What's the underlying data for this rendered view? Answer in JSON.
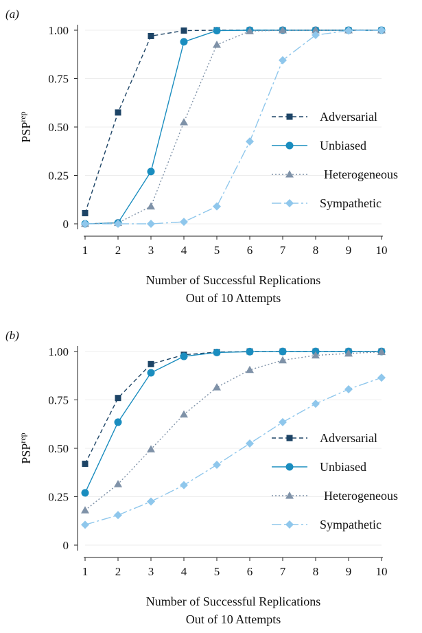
{
  "chart_data": [
    {
      "type": "line",
      "panel_label": "(a)",
      "xlabel": [
        "Number of Successful Replications",
        "Out of 10 Attempts"
      ],
      "ylabel": "PSP",
      "ylabel_sup": "rep",
      "x": [
        1,
        2,
        3,
        4,
        5,
        6,
        7,
        8,
        9,
        10
      ],
      "xlim": [
        1,
        10
      ],
      "ylim": [
        0,
        1
      ],
      "yticks": [
        "0",
        "0.25",
        "0.50",
        "0.75",
        "1.00"
      ],
      "ytick_values": [
        0,
        0.25,
        0.5,
        0.75,
        1.0
      ],
      "grid": true,
      "legend": "right",
      "series": [
        {
          "name": "Adversarial",
          "values": [
            0.055,
            0.575,
            0.97,
            0.998,
            1.0,
            1.0,
            1.0,
            1.0,
            1.0,
            1.0
          ],
          "color": "#1d4466",
          "marker": "square",
          "dash": "6,4"
        },
        {
          "name": "Unbiased",
          "values": [
            0.0,
            0.005,
            0.27,
            0.94,
            0.998,
            1.0,
            1.0,
            1.0,
            1.0,
            1.0
          ],
          "color": "#1a8dbf",
          "marker": "circle",
          "dash": ""
        },
        {
          "name": "Heterogeneous",
          "values": [
            0.0,
            0.005,
            0.09,
            0.525,
            0.925,
            0.995,
            1.0,
            1.0,
            1.0,
            1.0
          ],
          "color": "#7f92a8",
          "marker": "triangle",
          "dash": "2,3"
        },
        {
          "name": "Sympathetic",
          "values": [
            0.0,
            0.0,
            0.0,
            0.01,
            0.09,
            0.425,
            0.845,
            0.975,
            0.998,
            1.0
          ],
          "color": "#8fc7ec",
          "marker": "diamond",
          "dash": "14,4,3,4"
        }
      ]
    },
    {
      "type": "line",
      "panel_label": "(b)",
      "xlabel": [
        "Number of Successful Replications",
        "Out of 10 Attempts"
      ],
      "ylabel": "PSP",
      "ylabel_sup": "rep",
      "x": [
        1,
        2,
        3,
        4,
        5,
        6,
        7,
        8,
        9,
        10
      ],
      "xlim": [
        1,
        10
      ],
      "ylim": [
        0,
        1
      ],
      "yticks": [
        "0",
        "0.25",
        "0.50",
        "0.75",
        "1.00"
      ],
      "ytick_values": [
        0,
        0.25,
        0.5,
        0.75,
        1.0
      ],
      "grid": true,
      "legend": "right",
      "series": [
        {
          "name": "Adversarial",
          "values": [
            0.42,
            0.76,
            0.935,
            0.983,
            0.997,
            1.0,
            1.0,
            1.0,
            1.0,
            1.0
          ],
          "color": "#1d4466",
          "marker": "square",
          "dash": "6,4"
        },
        {
          "name": "Unbiased",
          "values": [
            0.27,
            0.635,
            0.89,
            0.975,
            0.995,
            0.999,
            1.0,
            1.0,
            1.0,
            1.0
          ],
          "color": "#1a8dbf",
          "marker": "circle",
          "dash": ""
        },
        {
          "name": "Heterogeneous",
          "values": [
            0.18,
            0.315,
            0.495,
            0.675,
            0.815,
            0.905,
            0.955,
            0.98,
            0.99,
            0.998
          ],
          "color": "#7f92a8",
          "marker": "triangle",
          "dash": "2,3"
        },
        {
          "name": "Sympathetic",
          "values": [
            0.105,
            0.155,
            0.225,
            0.31,
            0.415,
            0.525,
            0.635,
            0.73,
            0.805,
            0.865
          ],
          "color": "#8fc7ec",
          "marker": "diamond",
          "dash": "14,4,3,4"
        }
      ]
    }
  ]
}
